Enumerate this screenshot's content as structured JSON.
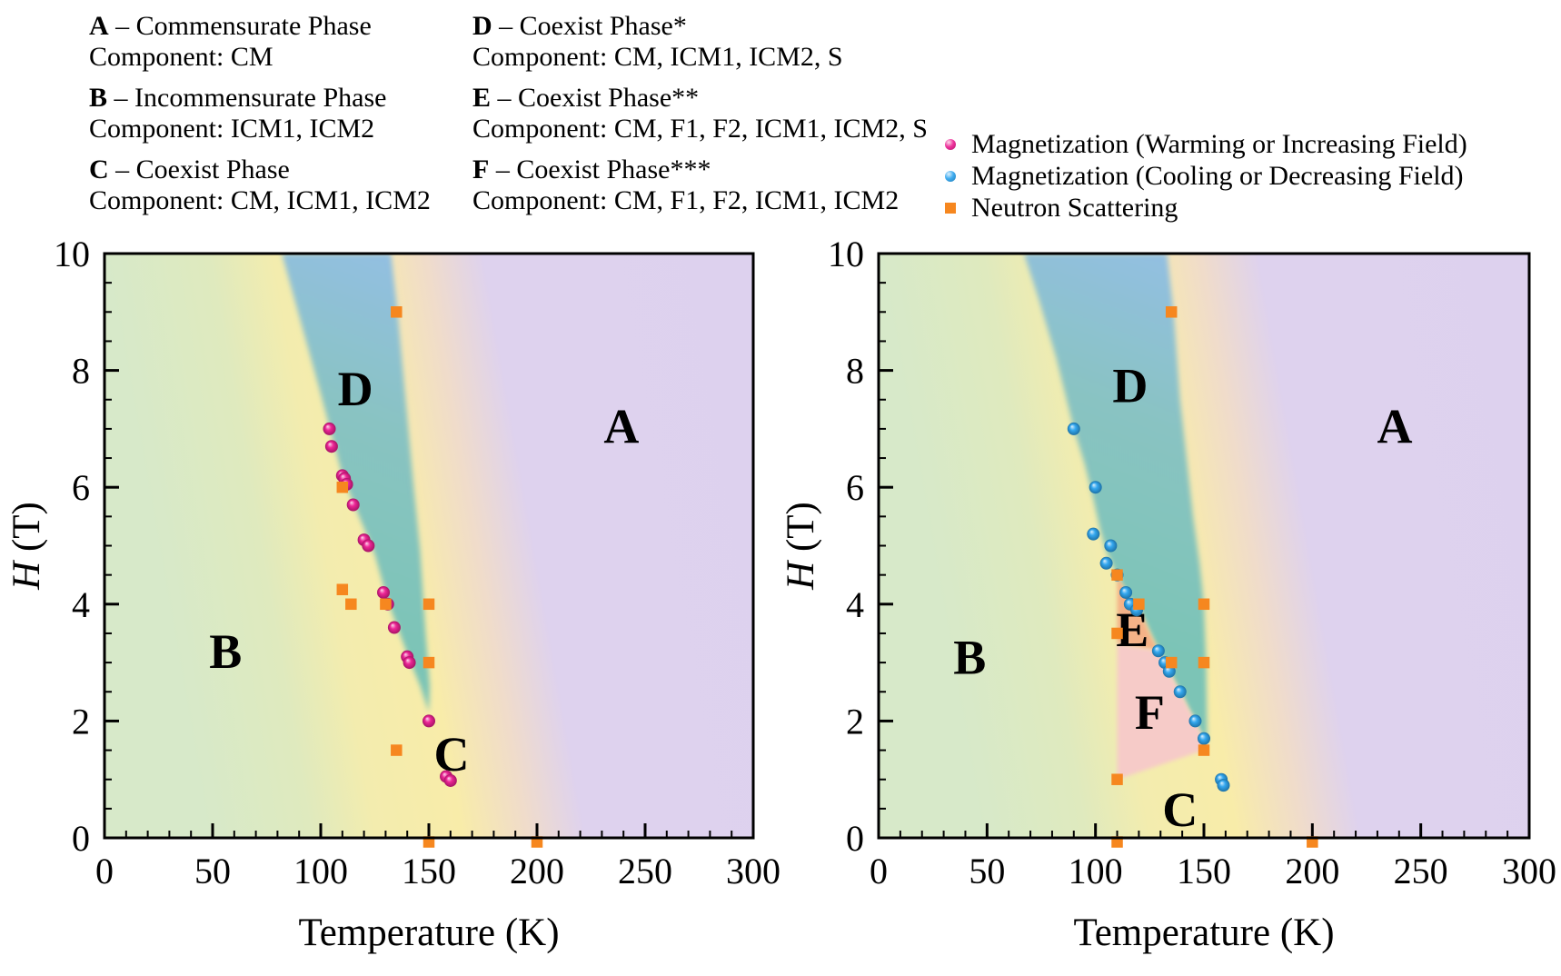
{
  "phase_legend": {
    "columns": [
      {
        "entries": [
          {
            "letter": "A",
            "title": " – Commensurate Phase",
            "component": "Component: CM"
          },
          {
            "letter": "B",
            "title": " – Incommensurate Phase",
            "component": "Component: ICM1, ICM2"
          },
          {
            "letter": "C",
            "title": " – Coexist Phase",
            "component": "Component: CM, ICM1, ICM2"
          }
        ]
      },
      {
        "entries": [
          {
            "letter": "D",
            "title": " – Coexist Phase*",
            "component": "Component: CM, ICM1, ICM2, S"
          },
          {
            "letter": "E",
            "title": " – Coexist Phase**",
            "component": "Component: CM, F1, F2, ICM1, ICM2, S"
          },
          {
            "letter": "F",
            "title": " – Coexist Phase***",
            "component": "Component: CM, F1, F2, ICM1, ICM2"
          }
        ]
      }
    ]
  },
  "marker_legend": {
    "items": [
      {
        "marker": "circle",
        "color": "#ec1b90",
        "label": "Magnetization (Warming or Increasing Field)"
      },
      {
        "marker": "circle",
        "color": "#2aa3ee",
        "label": "Magnetization (Cooling or Decreasing Field)"
      },
      {
        "marker": "square",
        "color": "#f6871f",
        "label": "Neutron Scattering"
      }
    ]
  },
  "colors": {
    "phase_A_lavender": "#ded2ee",
    "phase_B_green": "#d7e9c9",
    "phase_C_yellow": "#f8eca9",
    "phase_D_teal": "#7cc4b6",
    "phase_D_blue_top": "#93bfe3",
    "phase_E_salmon": "#f4b287",
    "phase_F_pink": "#f6cbc8",
    "warming_pink": "#ec1b90",
    "cooling_blue": "#2aa3ee",
    "neutron_orange": "#f6871f"
  },
  "chart_data": [
    {
      "type": "scatter",
      "title": "Phase diagram (warming / increasing field)",
      "xlabel": "Temperature (K)",
      "ylabel_italic": "H",
      "ylabel_rest": " (T)",
      "xlim": [
        0,
        300
      ],
      "ylim": [
        0,
        10
      ],
      "xticks": [
        0,
        50,
        100,
        150,
        200,
        250,
        300
      ],
      "yticks": [
        0,
        2,
        4,
        6,
        8,
        10
      ],
      "x_minor_step": 10,
      "y_minor_step": 0.5,
      "grid": false,
      "phase_labels": [
        {
          "text": "A",
          "T": 239,
          "H": 7.05
        },
        {
          "text": "B",
          "T": 56,
          "H": 3.2
        },
        {
          "text": "C",
          "T": 160.5,
          "H": 1.45
        },
        {
          "text": "D",
          "T": 116,
          "H": 7.7
        }
      ],
      "regions": {
        "background_bands": [
          {
            "t": 0,
            "color": "#d7e9c9"
          },
          {
            "t": 48,
            "color": "#dfeabe"
          },
          {
            "t": 78,
            "color": "#f3ecae"
          },
          {
            "t": 118,
            "color": "#f8eca9"
          },
          {
            "t": 148,
            "color": "#f0dcca"
          },
          {
            "t": 175,
            "color": "#ded2ee"
          },
          {
            "t": 300,
            "color": "#ddd1ee"
          }
        ],
        "wedge": {
          "name": "D",
          "colors": [
            "#7cc4b6",
            "#89c3c2",
            "#93bfe3"
          ],
          "points": [
            [
              82,
              10
            ],
            [
              88,
              9.2
            ],
            [
              94,
              8.4
            ],
            [
              100,
              7.6
            ],
            [
              105,
              6.9
            ],
            [
              110,
              6.2
            ],
            [
              115,
              5.75
            ],
            [
              120,
              5.3
            ],
            [
              125,
              4.85
            ],
            [
              131,
              4.05
            ],
            [
              136,
              3.55
            ],
            [
              141,
              3.05
            ],
            [
              146,
              2.6
            ],
            [
              150,
              2.15
            ],
            [
              150.4,
              2.6
            ],
            [
              148.5,
              3.5
            ],
            [
              146,
              4.9
            ],
            [
              143,
              6
            ],
            [
              139.5,
              7.4
            ],
            [
              135.5,
              9
            ],
            [
              132.5,
              10
            ]
          ]
        },
        "extra": []
      },
      "series": [
        {
          "name": "Magnetization (Warming or Increasing Field)",
          "marker": "circle",
          "color": "#ec1b90",
          "points": [
            [
              104,
              7.0
            ],
            [
              105,
              6.7
            ],
            [
              110,
              6.2
            ],
            [
              111,
              6.15
            ],
            [
              112,
              6.05
            ],
            [
              115,
              5.7
            ],
            [
              120,
              5.1
            ],
            [
              122,
              5.0
            ],
            [
              129,
              4.2
            ],
            [
              131,
              4.0
            ],
            [
              134,
              3.6
            ],
            [
              140,
              3.1
            ],
            [
              141,
              3.0
            ],
            [
              150,
              2.0
            ],
            [
              158,
              1.05
            ],
            [
              160,
              0.98
            ]
          ]
        },
        {
          "name": "Neutron Scattering",
          "marker": "square",
          "color": "#f6871f",
          "points": [
            [
              135,
              9.0
            ],
            [
              110,
              6.0
            ],
            [
              110,
              4.25
            ],
            [
              114,
              4.0
            ],
            [
              130,
              4.0
            ],
            [
              150,
              4.0
            ],
            [
              150,
              3.0
            ],
            [
              135,
              1.5
            ],
            [
              150,
              0
            ],
            [
              200,
              0
            ]
          ]
        }
      ]
    },
    {
      "type": "scatter",
      "title": "Phase diagram (cooling / decreasing field)",
      "xlabel": "Temperature (K)",
      "ylabel_italic": "H",
      "ylabel_rest": " (T)",
      "xlim": [
        0,
        300
      ],
      "ylim": [
        0,
        10
      ],
      "xticks": [
        0,
        50,
        100,
        150,
        200,
        250,
        300
      ],
      "yticks": [
        0,
        2,
        4,
        6,
        8,
        10
      ],
      "x_minor_step": 10,
      "y_minor_step": 0.5,
      "grid": false,
      "phase_labels": [
        {
          "text": "A",
          "T": 238,
          "H": 7.05
        },
        {
          "text": "B",
          "T": 42,
          "H": 3.1
        },
        {
          "text": "C",
          "T": 139,
          "H": 0.5
        },
        {
          "text": "D",
          "T": 116,
          "H": 7.75
        },
        {
          "text": "E",
          "T": 117,
          "H": 3.58
        },
        {
          "text": "F",
          "T": 125,
          "H": 2.16
        }
      ],
      "regions": {
        "background_bands": [
          {
            "t": 0,
            "color": "#d7e9c9"
          },
          {
            "t": 48,
            "color": "#dfeabe"
          },
          {
            "t": 78,
            "color": "#f3ecae"
          },
          {
            "t": 118,
            "color": "#f8eca9"
          },
          {
            "t": 148,
            "color": "#f0dcca"
          },
          {
            "t": 175,
            "color": "#ded2ee"
          },
          {
            "t": 300,
            "color": "#ddd1ee"
          }
        ],
        "wedge": {
          "name": "D",
          "colors": [
            "#7cc4b6",
            "#89c3c2",
            "#93bfe3"
          ],
          "points": [
            [
              67,
              10
            ],
            [
              74,
              9.2
            ],
            [
              82,
              8.2
            ],
            [
              90,
              7.0
            ],
            [
              95,
              6.4
            ],
            [
              99,
              5.8
            ],
            [
              102,
              5.3
            ],
            [
              105,
              4.9
            ],
            [
              108,
              4.65
            ],
            [
              110,
              4.5
            ],
            [
              114,
              4.2
            ],
            [
              117,
              4.0
            ],
            [
              121,
              3.85
            ],
            [
              129,
              3.2
            ],
            [
              133,
              2.95
            ],
            [
              136,
              2.7
            ],
            [
              139,
              2.5
            ],
            [
              143,
              2.2
            ],
            [
              146,
              2.0
            ],
            [
              149,
              1.75
            ],
            [
              151.5,
              1.6
            ],
            [
              151,
              3.0
            ],
            [
              150,
              4.0
            ],
            [
              148,
              4.7
            ],
            [
              145,
              5.5
            ],
            [
              142,
              6.5
            ],
            [
              139,
              7.5
            ],
            [
              136,
              9
            ],
            [
              133,
              10
            ]
          ]
        },
        "extra": [
          {
            "name": "E",
            "color": "#f4b287",
            "points": [
              [
                110,
                4.5
              ],
              [
                110,
                3.32
              ],
              [
                129,
                3.2
              ],
              [
                125,
                3.5
              ],
              [
                121,
                3.85
              ],
              [
                117,
                4.0
              ],
              [
                114,
                4.2
              ]
            ]
          },
          {
            "name": "F",
            "color": "#f6cbc8",
            "points": [
              [
                110,
                3.32
              ],
              [
                110,
                1.0
              ],
              [
                150,
                1.5
              ],
              [
                151.5,
                1.6
              ],
              [
                149,
                1.75
              ],
              [
                146,
                2.0
              ],
              [
                143,
                2.2
              ],
              [
                139,
                2.5
              ],
              [
                136,
                2.7
              ],
              [
                133,
                2.95
              ],
              [
                129,
                3.2
              ]
            ]
          }
        ]
      },
      "series": [
        {
          "name": "Magnetization (Cooling or Decreasing Field)",
          "marker": "circle",
          "color": "#2aa3ee",
          "points": [
            [
              90,
              7.0
            ],
            [
              100,
              6.0
            ],
            [
              99,
              5.2
            ],
            [
              107,
              5.0
            ],
            [
              105,
              4.7
            ],
            [
              110,
              4.5
            ],
            [
              114,
              4.2
            ],
            [
              116,
              4.0
            ],
            [
              119,
              3.9
            ],
            [
              129,
              3.2
            ],
            [
              132,
              3.0
            ],
            [
              134,
              2.85
            ],
            [
              139,
              2.5
            ],
            [
              146,
              2.0
            ],
            [
              150,
              1.7
            ],
            [
              158,
              1.0
            ],
            [
              159,
              0.9
            ]
          ]
        },
        {
          "name": "Neutron Scattering",
          "marker": "square",
          "color": "#f6871f",
          "points": [
            [
              135,
              9.0
            ],
            [
              110,
              4.5
            ],
            [
              120,
              4.0
            ],
            [
              110,
              3.5
            ],
            [
              135,
              3.0
            ],
            [
              150,
              4.0
            ],
            [
              150,
              3.0
            ],
            [
              150,
              1.5
            ],
            [
              110,
              1.0
            ],
            [
              110,
              0
            ],
            [
              200,
              0
            ]
          ]
        }
      ]
    }
  ]
}
